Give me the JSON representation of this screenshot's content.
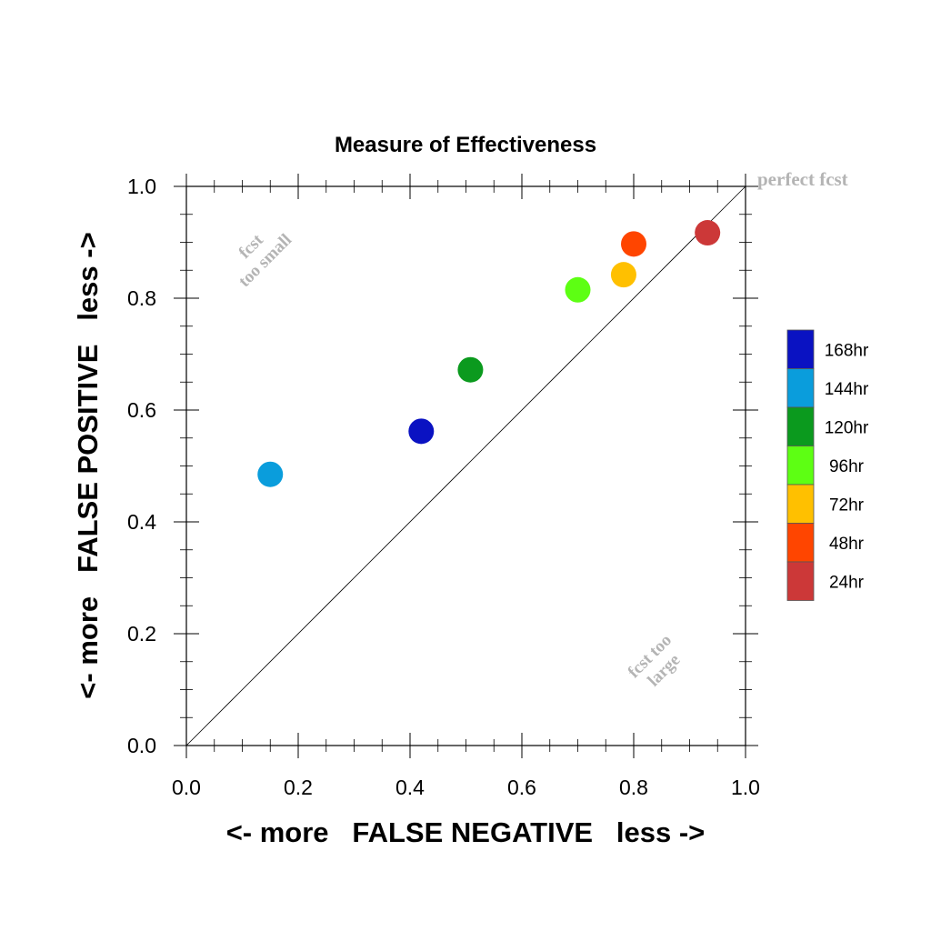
{
  "chart_data": {
    "type": "scatter",
    "title": "Measure of Effectiveness",
    "xlabel": "<- more   FALSE NEGATIVE   less ->",
    "ylabel": "<- more   FALSE POSITIVE   less ->",
    "xlim": [
      0.0,
      1.0
    ],
    "ylim": [
      0.0,
      1.0
    ],
    "xticks": [
      "0.0",
      "0.2",
      "0.4",
      "0.6",
      "0.8",
      "1.0"
    ],
    "yticks": [
      "0.0",
      "0.2",
      "0.4",
      "0.6",
      "0.8",
      "1.0"
    ],
    "grid": false,
    "diagonal_reference": true,
    "annotations": {
      "perfect": "perfect fcst",
      "small_line1": "fcst",
      "small_line2": "too small",
      "large_line1": "fcst too",
      "large_line2": "large"
    },
    "legend_position": "right",
    "series": [
      {
        "name": "168hr",
        "color": "#0a12c2",
        "x": 0.42,
        "y": 0.562
      },
      {
        "name": "144hr",
        "color": "#0a9ddc",
        "x": 0.15,
        "y": 0.485
      },
      {
        "name": "120hr",
        "color": "#0b9a1e",
        "x": 0.508,
        "y": 0.672
      },
      {
        "name": "96hr",
        "color": "#5dff13",
        "x": 0.7,
        "y": 0.815
      },
      {
        "name": "72hr",
        "color": "#ffc000",
        "x": 0.782,
        "y": 0.842
      },
      {
        "name": "48hr",
        "color": "#ff4500",
        "x": 0.8,
        "y": 0.897
      },
      {
        "name": "24hr",
        "color": "#cc3838",
        "x": 0.932,
        "y": 0.917
      }
    ]
  }
}
